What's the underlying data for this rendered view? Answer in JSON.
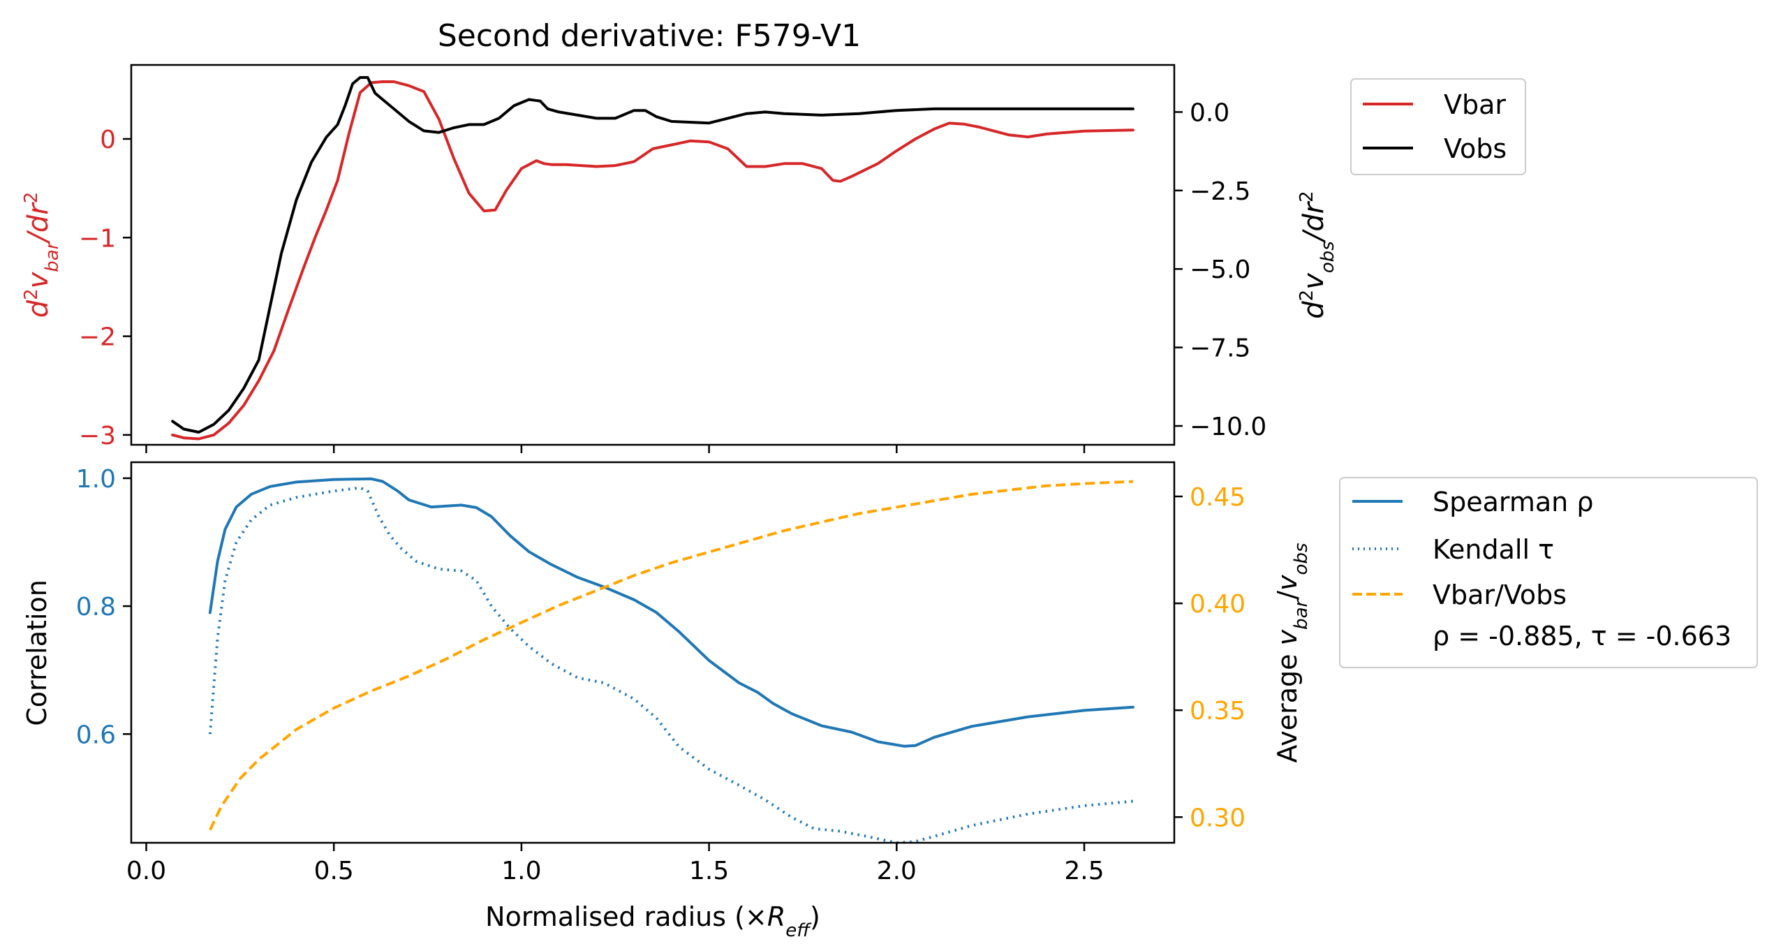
{
  "chart_data": [
    {
      "type": "line",
      "title": "Second derivative: F579-V1",
      "y_left": {
        "label": "d²v_bar/dr²",
        "lim": [
          -3.1,
          0.75
        ],
        "ticks": [
          0,
          -1,
          -2,
          -3
        ],
        "tick_labels": [
          "0",
          "−1",
          "−2",
          "−3"
        ],
        "color": "#d62728"
      },
      "y_right": {
        "label": "d²v_obs/dr²",
        "lim": [
          -10.6,
          1.5
        ],
        "ticks": [
          0,
          -2.5,
          -5,
          -7.5,
          -10
        ],
        "tick_labels": [
          "0.0",
          "−2.5",
          "−5.0",
          "−7.5",
          "−10.0"
        ],
        "color": "#000000"
      },
      "legend": {
        "position": "outside-right-top",
        "entries": [
          "Vbar",
          "Vobs"
        ]
      },
      "series": [
        {
          "name": "Vbar",
          "axis": "left",
          "color": "#d62728",
          "dash": "solid",
          "x": [
            0.07,
            0.1,
            0.14,
            0.18,
            0.22,
            0.26,
            0.3,
            0.34,
            0.38,
            0.42,
            0.45,
            0.48,
            0.51,
            0.54,
            0.57,
            0.6,
            0.63,
            0.66,
            0.7,
            0.74,
            0.78,
            0.82,
            0.86,
            0.9,
            0.93,
            0.96,
            1.0,
            1.04,
            1.06,
            1.08,
            1.12,
            1.16,
            1.2,
            1.25,
            1.3,
            1.35,
            1.4,
            1.45,
            1.5,
            1.55,
            1.6,
            1.65,
            1.7,
            1.75,
            1.8,
            1.83,
            1.85,
            1.88,
            1.95,
            2.0,
            2.05,
            2.1,
            2.14,
            2.18,
            2.22,
            2.26,
            2.3,
            2.35,
            2.4,
            2.5,
            2.63
          ],
          "values": [
            -3.0,
            -3.03,
            -3.04,
            -3.0,
            -2.88,
            -2.7,
            -2.45,
            -2.15,
            -1.72,
            -1.3,
            -1.0,
            -0.72,
            -0.42,
            0.05,
            0.47,
            0.57,
            0.58,
            0.58,
            0.54,
            0.48,
            0.2,
            -0.2,
            -0.55,
            -0.73,
            -0.72,
            -0.52,
            -0.3,
            -0.22,
            -0.25,
            -0.26,
            -0.26,
            -0.27,
            -0.28,
            -0.27,
            -0.23,
            -0.1,
            -0.06,
            -0.02,
            -0.03,
            -0.1,
            -0.28,
            -0.28,
            -0.25,
            -0.25,
            -0.3,
            -0.42,
            -0.43,
            -0.38,
            -0.25,
            -0.12,
            0.0,
            0.1,
            0.16,
            0.15,
            0.12,
            0.08,
            0.04,
            0.02,
            0.05,
            0.08,
            0.09
          ]
        },
        {
          "name": "Vobs",
          "axis": "right",
          "color": "#000000",
          "dash": "solid",
          "x": [
            0.07,
            0.1,
            0.14,
            0.18,
            0.22,
            0.26,
            0.3,
            0.33,
            0.36,
            0.4,
            0.44,
            0.48,
            0.51,
            0.53,
            0.55,
            0.57,
            0.59,
            0.61,
            0.63,
            0.66,
            0.7,
            0.74,
            0.78,
            0.82,
            0.86,
            0.9,
            0.94,
            0.98,
            1.02,
            1.05,
            1.07,
            1.1,
            1.15,
            1.2,
            1.25,
            1.3,
            1.33,
            1.36,
            1.4,
            1.5,
            1.55,
            1.6,
            1.65,
            1.7,
            1.8,
            1.9,
            2.0,
            2.1,
            2.2,
            2.4,
            2.63
          ],
          "values": [
            -9.85,
            -10.1,
            -10.2,
            -9.95,
            -9.5,
            -8.8,
            -7.9,
            -6.2,
            -4.5,
            -2.8,
            -1.6,
            -0.8,
            -0.4,
            0.2,
            0.9,
            1.1,
            1.1,
            0.6,
            0.4,
            0.1,
            -0.3,
            -0.6,
            -0.65,
            -0.5,
            -0.4,
            -0.4,
            -0.2,
            0.2,
            0.4,
            0.35,
            0.1,
            0.0,
            -0.1,
            -0.2,
            -0.2,
            0.05,
            0.05,
            -0.15,
            -0.3,
            -0.35,
            -0.2,
            -0.05,
            0.0,
            -0.05,
            -0.1,
            -0.05,
            0.05,
            0.1,
            0.1,
            0.1,
            0.1
          ]
        }
      ]
    },
    {
      "type": "line",
      "xlabel": "Normalised radius (×R_eff)",
      "xlim": [
        -0.04,
        2.74
      ],
      "xticks": [
        0.0,
        0.5,
        1.0,
        1.5,
        2.0,
        2.5
      ],
      "xtick_labels": [
        "0.0",
        "0.5",
        "1.0",
        "1.5",
        "2.0",
        "2.5"
      ],
      "y_left": {
        "label": "Correlation",
        "lim": [
          0.43,
          1.025
        ],
        "ticks": [
          1.0,
          0.8,
          0.6
        ],
        "tick_labels": [
          "1.0",
          "0.8",
          "0.6"
        ],
        "color": "#1f77b4"
      },
      "y_right": {
        "label": "Average v_bar/v_obs",
        "lim": [
          0.288,
          0.466
        ],
        "ticks": [
          0.45,
          0.4,
          0.35,
          0.3
        ],
        "tick_labels": [
          "0.45",
          "0.40",
          "0.35",
          "0.30"
        ],
        "color": "#ffa500"
      },
      "legend": {
        "position": "outside-right-top",
        "entries": [
          "Spearman ρ",
          "Kendall τ",
          "Vbar/Vobs",
          "ρ = -0.885, τ = -0.663"
        ]
      },
      "series": [
        {
          "name": "Spearman ρ",
          "axis": "left",
          "color": "#1f77b4",
          "dash": "solid",
          "x": [
            0.17,
            0.19,
            0.21,
            0.24,
            0.28,
            0.33,
            0.4,
            0.5,
            0.6,
            0.63,
            0.67,
            0.7,
            0.76,
            0.84,
            0.88,
            0.92,
            0.97,
            1.02,
            1.08,
            1.15,
            1.22,
            1.3,
            1.36,
            1.42,
            1.5,
            1.58,
            1.63,
            1.67,
            1.72,
            1.8,
            1.88,
            1.95,
            2.02,
            2.05,
            2.1,
            2.2,
            2.35,
            2.5,
            2.63
          ],
          "values": [
            0.79,
            0.87,
            0.92,
            0.955,
            0.975,
            0.987,
            0.994,
            0.998,
            0.999,
            0.995,
            0.98,
            0.966,
            0.955,
            0.958,
            0.954,
            0.94,
            0.91,
            0.885,
            0.865,
            0.845,
            0.83,
            0.81,
            0.79,
            0.76,
            0.715,
            0.68,
            0.665,
            0.648,
            0.632,
            0.613,
            0.603,
            0.588,
            0.581,
            0.582,
            0.595,
            0.612,
            0.627,
            0.637,
            0.642
          ]
        },
        {
          "name": "Kendall τ",
          "axis": "left",
          "color": "#1f77b4",
          "dash": "dotted",
          "x": [
            0.17,
            0.19,
            0.21,
            0.24,
            0.28,
            0.33,
            0.4,
            0.5,
            0.57,
            0.59,
            0.62,
            0.65,
            0.68,
            0.72,
            0.78,
            0.84,
            0.88,
            0.92,
            0.97,
            1.02,
            1.08,
            1.15,
            1.22,
            1.3,
            1.36,
            1.42,
            1.5,
            1.58,
            1.65,
            1.72,
            1.78,
            1.85,
            1.92,
            2.0,
            2.05,
            2.1,
            2.2,
            2.35,
            2.5,
            2.63
          ],
          "values": [
            0.6,
            0.75,
            0.84,
            0.9,
            0.935,
            0.958,
            0.97,
            0.98,
            0.985,
            0.98,
            0.94,
            0.91,
            0.89,
            0.87,
            0.858,
            0.855,
            0.84,
            0.8,
            0.765,
            0.737,
            0.71,
            0.688,
            0.68,
            0.655,
            0.625,
            0.58,
            0.545,
            0.52,
            0.497,
            0.47,
            0.452,
            0.448,
            0.44,
            0.43,
            0.432,
            0.44,
            0.457,
            0.475,
            0.488,
            0.495
          ]
        },
        {
          "name": "Vbar/Vobs",
          "axis": "right",
          "color": "#ffa500",
          "dash": "dashed",
          "x": [
            0.17,
            0.2,
            0.25,
            0.3,
            0.4,
            0.5,
            0.6,
            0.7,
            0.8,
            0.9,
            1.0,
            1.1,
            1.2,
            1.3,
            1.4,
            1.5,
            1.6,
            1.7,
            1.8,
            1.9,
            2.0,
            2.1,
            2.2,
            2.3,
            2.4,
            2.5,
            2.63
          ],
          "values": [
            0.294,
            0.305,
            0.318,
            0.327,
            0.341,
            0.351,
            0.359,
            0.366,
            0.374,
            0.383,
            0.391,
            0.399,
            0.406,
            0.413,
            0.419,
            0.424,
            0.429,
            0.434,
            0.438,
            0.442,
            0.445,
            0.448,
            0.451,
            0.453,
            0.455,
            0.456,
            0.457
          ]
        }
      ]
    }
  ]
}
